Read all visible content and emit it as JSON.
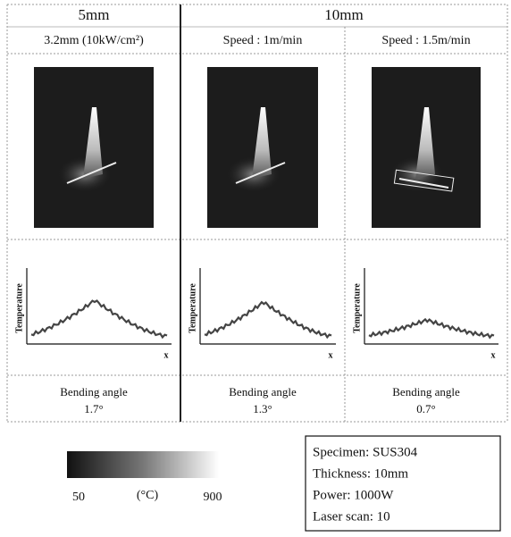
{
  "table": {
    "headers": [
      "5mm",
      "10mm"
    ],
    "subheaders": [
      "3.2mm (10kW/cm²)",
      "Speed : 1m/min",
      "Speed : 1.5m/min"
    ],
    "profiles": [
      {
        "ylabel": "Temperature",
        "xlabel": "x"
      },
      {
        "ylabel": "Temperature",
        "xlabel": "x"
      },
      {
        "ylabel": "Temperature",
        "xlabel": "x"
      }
    ],
    "results": [
      {
        "label": "Bending angle",
        "value": "1.7°"
      },
      {
        "label": "Bending angle",
        "value": "1.3°"
      },
      {
        "label": "Bending angle",
        "value": "0.7°"
      }
    ]
  },
  "colorbar": {
    "min": "50",
    "unit": "(°C)",
    "max": "900"
  },
  "specimen": [
    "Specimen: SUS304",
    "Thickness: 10mm",
    "Power: 1000W",
    "Laser scan: 10"
  ]
}
